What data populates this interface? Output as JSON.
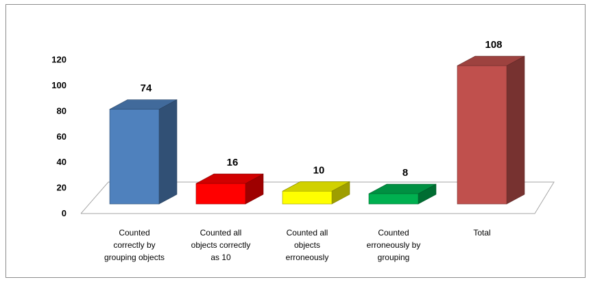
{
  "chart_data": {
    "type": "bar",
    "title": "",
    "xlabel": "",
    "ylabel": "",
    "categories": [
      [
        "Counted",
        "correctly by",
        "grouping objects"
      ],
      [
        "Counted all",
        "objects correctly",
        "as 10"
      ],
      [
        "Counted all",
        "objects",
        "erroneously"
      ],
      [
        "Counted",
        "erroneously by",
        "grouping"
      ],
      [
        "Total"
      ]
    ],
    "values": [
      74,
      16,
      10,
      8,
      108
    ],
    "data_labels": [
      "74",
      "16",
      "10",
      "8",
      "108"
    ],
    "colors": [
      "#4f81bd",
      "#ff0000",
      "#ffff00",
      "#00b050",
      "#c0504d"
    ],
    "ylim": [
      0,
      120
    ],
    "yticks": [
      "0",
      "20",
      "40",
      "60",
      "80",
      "100",
      "120"
    ],
    "style": "3d-column",
    "grid": false,
    "legend": "none"
  }
}
